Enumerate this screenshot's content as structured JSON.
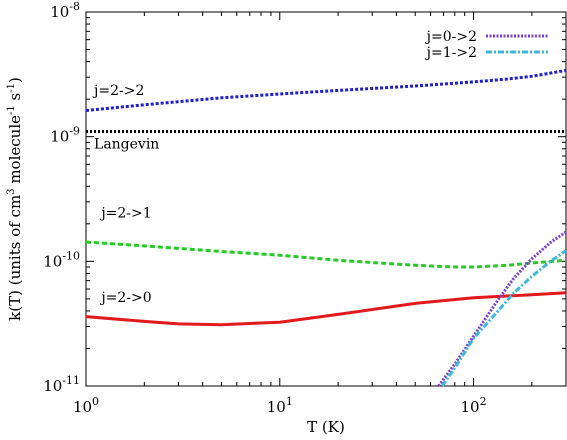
{
  "chart_data": {
    "type": "line",
    "xscale": "log",
    "yscale": "log",
    "xlim": [
      1,
      300
    ],
    "ylim": [
      1e-11,
      1e-08
    ],
    "xlabel": "T (K)",
    "ylabel_parts": [
      "k(T) (units of cm",
      "3",
      " molecule",
      "-1",
      " s",
      "-1",
      ")"
    ],
    "x_ticks": [
      {
        "value": 1,
        "base": "10",
        "exp": "0"
      },
      {
        "value": 10,
        "base": "10",
        "exp": "1"
      },
      {
        "value": 100,
        "base": "10",
        "exp": "2"
      }
    ],
    "y_ticks": [
      {
        "value": 1e-11,
        "base": "10",
        "exp": "-11"
      },
      {
        "value": 1e-10,
        "base": "10",
        "exp": "-10"
      },
      {
        "value": 1e-09,
        "base": "10",
        "exp": "-9"
      },
      {
        "value": 1e-08,
        "base": "10",
        "exp": "-8"
      }
    ],
    "grid": false,
    "legend_position": "top-right",
    "series": [
      {
        "id": "j22",
        "color": "#1f1fd0",
        "dash": "3,2",
        "x": [
          1,
          2,
          5,
          10,
          20,
          50,
          100,
          150,
          200,
          300
        ],
        "y": [
          1.62e-09,
          1.8e-09,
          2.05e-09,
          2.2e-09,
          2.35e-09,
          2.55e-09,
          2.75e-09,
          2.9e-09,
          3.05e-09,
          3.4e-09
        ]
      },
      {
        "id": "langevin",
        "color": "#000000",
        "dash": "2,2",
        "x": [
          1,
          300
        ],
        "y": [
          1.1e-09,
          1.1e-09
        ]
      },
      {
        "id": "j21",
        "color": "#22cc22",
        "dash": "5,3",
        "x": [
          1,
          2,
          5,
          10,
          20,
          50,
          80,
          100,
          150,
          200,
          300
        ],
        "y": [
          1.43e-10,
          1.33e-10,
          1.2e-10,
          1.12e-10,
          1.02e-10,
          9.3e-11,
          9e-11,
          9e-11,
          9.3e-11,
          9.7e-11,
          1.02e-10
        ]
      },
      {
        "id": "j20",
        "color": "#e31a1c",
        "dash": "",
        "x": [
          1,
          2,
          3,
          5,
          10,
          20,
          50,
          100,
          200,
          300
        ],
        "y": [
          3.6e-11,
          3.3e-11,
          3.15e-11,
          3.1e-11,
          3.25e-11,
          3.75e-11,
          4.6e-11,
          5.1e-11,
          5.4e-11,
          5.6e-11
        ]
      },
      {
        "id": "j02",
        "name": "j=0->2",
        "color": "#7b3fd0",
        "dash": "2,1.5",
        "x": [
          66,
          80,
          100,
          130,
          160,
          200,
          250,
          300
        ],
        "y": [
          1e-11,
          1.5e-11,
          2.5e-11,
          4.6e-11,
          7.2e-11,
          1.05e-10,
          1.42e-10,
          1.72e-10
        ]
      },
      {
        "id": "j12",
        "name": "j=1->2",
        "color": "#3fb8e0",
        "dash": "6,2,2,2",
        "x": [
          69,
          80,
          100,
          130,
          160,
          200,
          250,
          300
        ],
        "y": [
          1e-11,
          1.4e-11,
          2.4e-11,
          3.8e-11,
          5.5e-11,
          7.6e-11,
          1e-10,
          1.22e-10
        ]
      }
    ],
    "annotations": [
      {
        "text": "j=2->2",
        "x": 1.1,
        "y": 2.15e-09
      },
      {
        "text": "Langevin",
        "x": 1.1,
        "y": 8e-10
      },
      {
        "text": "j=2->1",
        "x": 1.2,
        "y": 2.25e-10
      },
      {
        "text": "j=2->0",
        "x": 1.2,
        "y": 4.7e-11
      }
    ]
  }
}
